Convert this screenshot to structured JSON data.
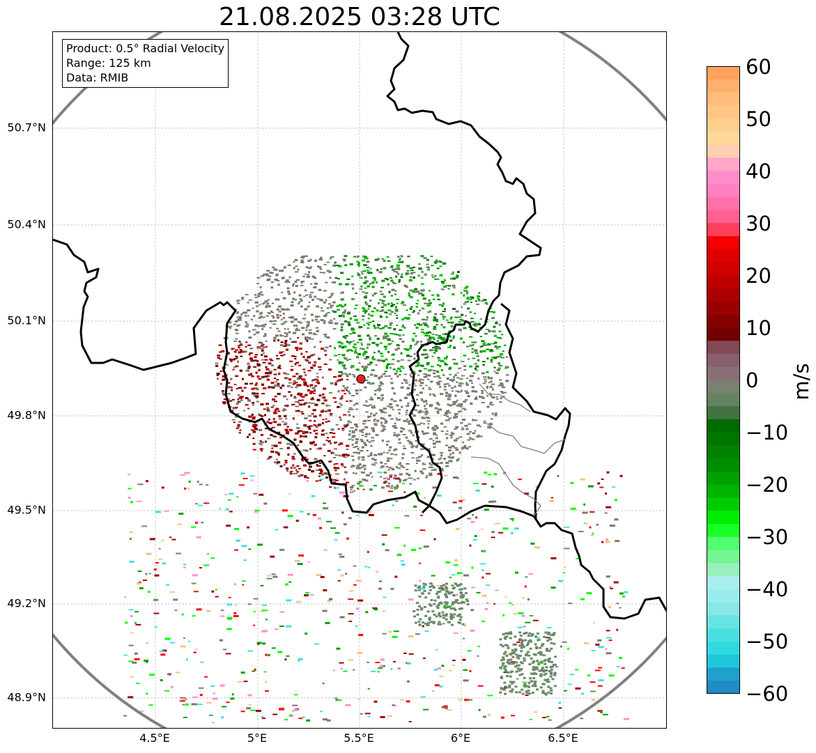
{
  "title": "21.08.2025 03:28 UTC",
  "info_box": {
    "product": "Product: 0.5° Radial Velocity",
    "range": "Range: 125 km",
    "data": "Data: RMIB"
  },
  "lat_labels": [
    "50.7°N",
    "50.4°N",
    "50.1°N",
    "49.8°N",
    "49.5°N",
    "49.2°N",
    "48.9°N"
  ],
  "lon_labels": [
    "4.5°E",
    "5°E",
    "5.5°E",
    "6°E",
    "6.5°E"
  ],
  "colorbar": {
    "unit": "m/s",
    "tick_labels": [
      "60",
      "50",
      "40",
      "30",
      "20",
      "10",
      "0",
      "−10",
      "−20",
      "−30",
      "−40",
      "−50",
      "−60"
    ],
    "min": -60,
    "max": 60
  },
  "radar": {
    "site_lat": 49.91,
    "site_lon": 5.5,
    "range_km": 125
  },
  "colors": {
    "range_ring": "#808080",
    "site_marker": "#e02020",
    "border": "#000000",
    "region_border": "#808080",
    "grid": "#b0b0b0"
  }
}
